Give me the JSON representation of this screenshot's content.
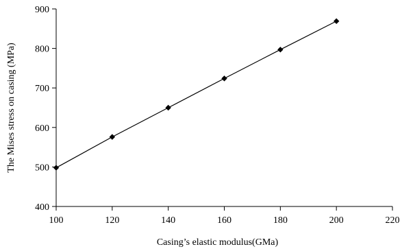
{
  "chart_data": {
    "type": "line",
    "title": "",
    "xlabel": "Casing’s elastic modulus(GMa)",
    "ylabel": "The Mises stress on casing (MPa)",
    "xlim": [
      100,
      220
    ],
    "ylim": [
      400,
      900
    ],
    "xticks": [
      100,
      120,
      140,
      160,
      180,
      200,
      220
    ],
    "yticks": [
      400,
      500,
      600,
      700,
      800,
      900
    ],
    "grid": false,
    "legend": "none",
    "colors": {
      "line": "#000000",
      "marker": "#000000",
      "axis": "#000000"
    },
    "marker": "diamond",
    "x": [
      100,
      120,
      140,
      160,
      180,
      200
    ],
    "series": [
      {
        "values": [
          498,
          576,
          650,
          724,
          797,
          869
        ]
      }
    ]
  }
}
